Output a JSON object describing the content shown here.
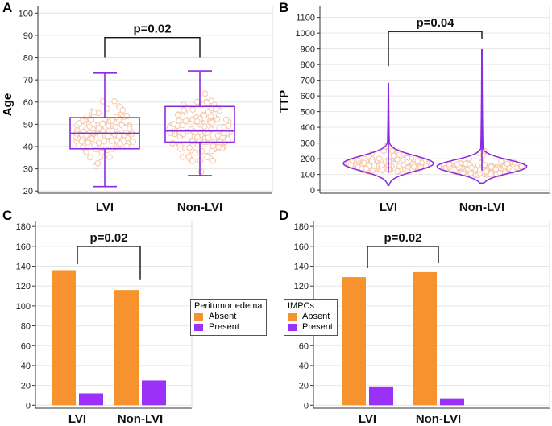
{
  "colors": {
    "absent": "#f7932e",
    "present": "#9b30f8",
    "box": "#8a2be2",
    "dots": "#f5c7a8",
    "grid": "#e6e6e6"
  },
  "chart_data": [
    {
      "panel": "A",
      "type": "box",
      "title": "",
      "xlabel": "",
      "ylabel": "Age",
      "ylim": [
        19,
        103
      ],
      "yticks": [
        20,
        30,
        40,
        50,
        60,
        70,
        80,
        90,
        100
      ],
      "categories": [
        "LVI",
        "Non-LVI"
      ],
      "boxes": [
        {
          "name": "LVI",
          "min": 22,
          "q1": 39,
          "median": 46,
          "q3": 53,
          "max": 73
        },
        {
          "name": "Non-LVI",
          "min": 27,
          "q1": 42,
          "median": 47,
          "q3": 58,
          "max": 74
        }
      ],
      "annotation": "p=0.02"
    },
    {
      "panel": "B",
      "type": "violin",
      "title": "",
      "xlabel": "",
      "ylabel": "TTP",
      "ylim": [
        -20,
        1170
      ],
      "yticks": [
        0,
        100,
        200,
        300,
        400,
        500,
        600,
        700,
        800,
        900,
        1000,
        1100
      ],
      "categories": [
        "LVI",
        "Non-LVI"
      ],
      "series": [
        {
          "name": "LVI",
          "min": 30,
          "max": 680,
          "mode": 170
        },
        {
          "name": "Non-LVI",
          "min": 45,
          "max": 895,
          "mode": 150
        }
      ],
      "annotation": "p=0.04"
    },
    {
      "panel": "C",
      "type": "bar",
      "title": "",
      "xlabel": "",
      "ylabel": "",
      "ylim": [
        -3,
        185
      ],
      "yticks": [
        0,
        20,
        40,
        60,
        80,
        100,
        120,
        140,
        160,
        180
      ],
      "categories": [
        "LVI",
        "Non-LVI"
      ],
      "series": [
        {
          "name": "Absent",
          "values": [
            136,
            116
          ]
        },
        {
          "name": "Present",
          "values": [
            12,
            25
          ]
        }
      ],
      "legend": {
        "title": "Peritumor edema",
        "position": "right"
      },
      "annotation": "p=0.02"
    },
    {
      "panel": "D",
      "type": "bar",
      "title": "",
      "xlabel": "",
      "ylabel": "",
      "ylim": [
        -3,
        185
      ],
      "yticks": [
        0,
        20,
        40,
        60,
        80,
        100,
        120,
        140,
        160,
        180
      ],
      "categories": [
        "LVI",
        "Non-LVI"
      ],
      "series": [
        {
          "name": "Absent",
          "values": [
            129,
            134
          ]
        },
        {
          "name": "Present",
          "values": [
            19,
            7
          ]
        }
      ],
      "legend": {
        "title": "IMPCs",
        "position": "left"
      },
      "annotation": "p=0.02"
    }
  ]
}
